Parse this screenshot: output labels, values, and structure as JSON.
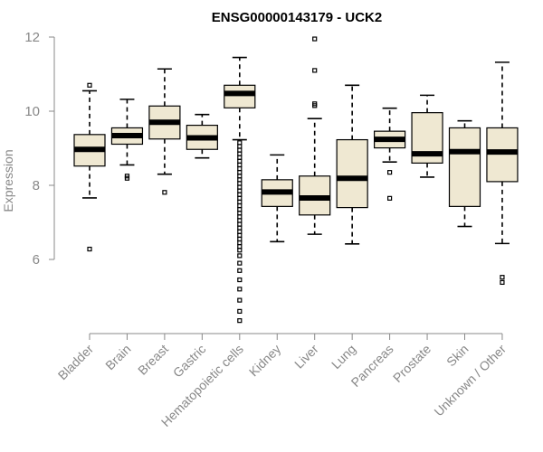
{
  "chart_data": {
    "type": "boxplot",
    "title": "ENSG00000143179 - UCK2",
    "xlabel": "",
    "ylabel": "Expression",
    "ylim": [
      4.0,
      12.0
    ],
    "yticks": [
      6,
      8,
      10,
      12
    ],
    "box_fill": "#efe8d2",
    "categories": [
      "Bladder",
      "Brain",
      "Breast",
      "Gastric",
      "Hematopoietic cells",
      "Kidney",
      "Liver",
      "Lung",
      "Pancreas",
      "Prostate",
      "Skin",
      "Unknown / Other"
    ],
    "boxes": [
      {
        "q1": 8.52,
        "median": 8.97,
        "q3": 9.37,
        "whisker_low": 7.66,
        "whisker_high": 10.55,
        "outliers": [
          10.7,
          6.28
        ]
      },
      {
        "q1": 9.11,
        "median": 9.34,
        "q3": 9.55,
        "whisker_low": 8.55,
        "whisker_high": 10.32,
        "outliers": [
          8.25,
          8.19
        ]
      },
      {
        "q1": 9.25,
        "median": 9.7,
        "q3": 10.14,
        "whisker_low": 8.3,
        "whisker_high": 11.14,
        "outliers": [
          7.81
        ]
      },
      {
        "q1": 8.97,
        "median": 9.28,
        "q3": 9.62,
        "whisker_low": 8.74,
        "whisker_high": 9.91,
        "outliers": []
      },
      {
        "q1": 10.09,
        "median": 10.48,
        "q3": 10.7,
        "whisker_low": 9.23,
        "whisker_high": 11.45,
        "outliers": [
          9.15,
          9.05,
          8.95,
          8.85,
          8.75,
          8.65,
          8.55,
          8.45,
          8.35,
          8.25,
          8.15,
          8.05,
          7.95,
          7.85,
          7.75,
          7.65,
          7.55,
          7.45,
          7.35,
          7.25,
          7.15,
          7.05,
          6.95,
          6.85,
          6.75,
          6.65,
          6.55,
          6.45,
          6.35,
          6.25,
          6.1,
          5.9,
          5.7,
          5.45,
          5.2,
          4.9,
          4.6,
          4.35
        ]
      },
      {
        "q1": 7.43,
        "median": 7.82,
        "q3": 8.15,
        "whisker_low": 6.48,
        "whisker_high": 8.82,
        "outliers": []
      },
      {
        "q1": 7.2,
        "median": 7.66,
        "q3": 8.25,
        "whisker_low": 6.68,
        "whisker_high": 9.8,
        "outliers": [
          11.95,
          11.1,
          10.2,
          10.15
        ]
      },
      {
        "q1": 7.4,
        "median": 8.19,
        "q3": 9.23,
        "whisker_low": 6.42,
        "whisker_high": 10.7,
        "outliers": []
      },
      {
        "q1": 9.01,
        "median": 9.24,
        "q3": 9.46,
        "whisker_low": 8.63,
        "whisker_high": 10.08,
        "outliers": [
          8.35,
          7.65
        ]
      },
      {
        "q1": 8.6,
        "median": 8.85,
        "q3": 9.96,
        "whisker_low": 8.22,
        "whisker_high": 10.43,
        "outliers": []
      },
      {
        "q1": 7.43,
        "median": 8.91,
        "q3": 9.55,
        "whisker_low": 6.89,
        "whisker_high": 9.74,
        "outliers": []
      },
      {
        "q1": 8.1,
        "median": 8.9,
        "q3": 9.55,
        "whisker_low": 6.43,
        "whisker_high": 11.32,
        "outliers": [
          5.52,
          5.38
        ]
      }
    ]
  }
}
